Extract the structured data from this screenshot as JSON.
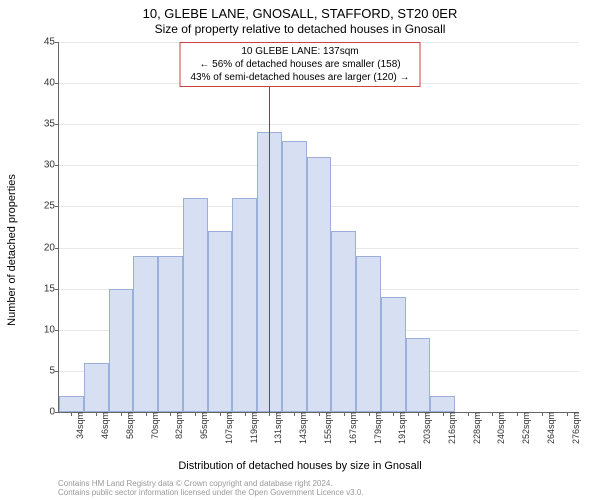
{
  "title_line1": "10, GLEBE LANE, GNOSALL, STAFFORD, ST20 0ER",
  "title_line2": "Size of property relative to detached houses in Gnosall",
  "annotation": {
    "line1": "10 GLEBE LANE: 137sqm",
    "line2": "← 56% of detached houses are smaller (158)",
    "line3": "43% of semi-detached houses are larger (120) →",
    "border_color": "#d04040"
  },
  "xlabel": "Distribution of detached houses by size in Gnosall",
  "ylabel": "Number of detached properties",
  "footer_line1": "Contains HM Land Registry data © Crown copyright and database right 2024.",
  "footer_line2": "Contains public sector information licensed under the Open Government Licence v3.0.",
  "chart": {
    "type": "histogram",
    "ylim": [
      0,
      45
    ],
    "ytick_step": 5,
    "x_ticks": [
      "34sqm",
      "46sqm",
      "58sqm",
      "70sqm",
      "82sqm",
      "95sqm",
      "107sqm",
      "119sqm",
      "131sqm",
      "143sqm",
      "155sqm",
      "167sqm",
      "179sqm",
      "191sqm",
      "203sqm",
      "216sqm",
      "228sqm",
      "240sqm",
      "252sqm",
      "264sqm",
      "276sqm"
    ],
    "values": [
      2,
      6,
      15,
      19,
      19,
      26,
      22,
      26,
      34,
      33,
      31,
      22,
      19,
      14,
      9,
      2,
      0,
      0,
      0,
      0,
      0
    ],
    "bar_fill": "#d6e0f2",
    "bar_stroke": "#9ab0d8",
    "background_color": "#ffffff",
    "grid_color": "#e8e8e8",
    "axis_color": "#666666",
    "ref_line_bin": 8.5,
    "ref_line_color": "#d02020",
    "label_fontsize": 11,
    "tick_fontsize": 10
  }
}
